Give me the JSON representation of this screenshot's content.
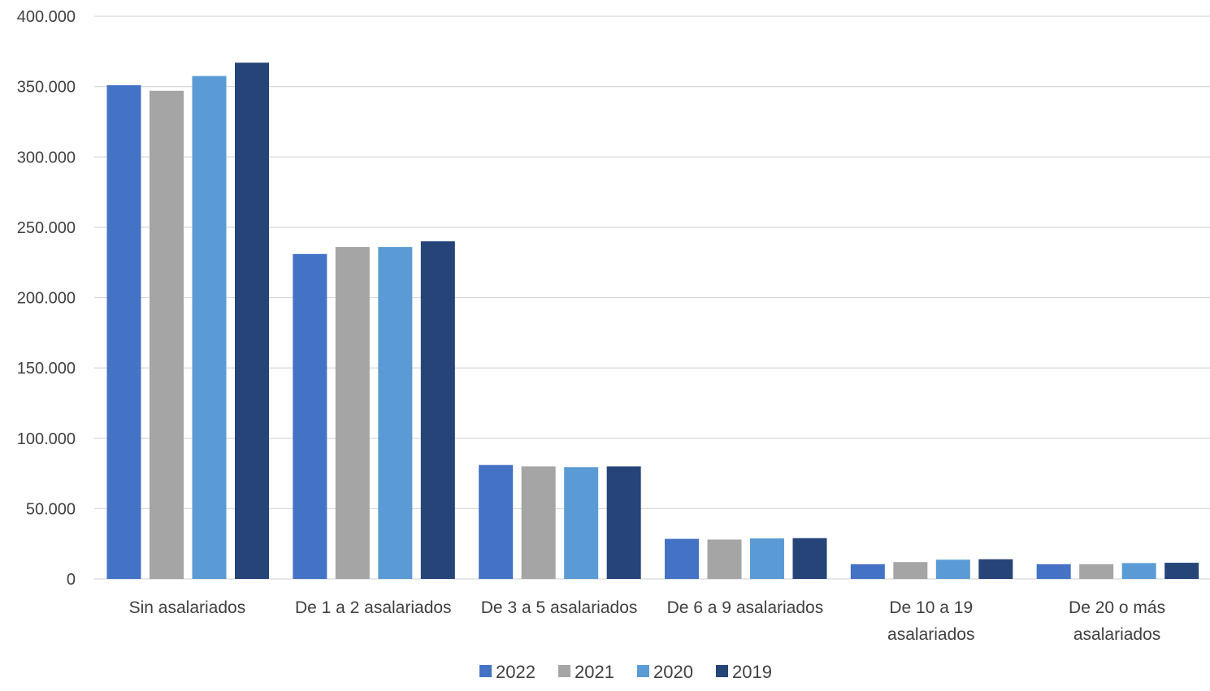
{
  "chart_data": {
    "type": "bar",
    "title": "",
    "xlabel": "",
    "ylabel": "",
    "ylim": [
      0,
      400000
    ],
    "yticks": [
      0,
      50000,
      100000,
      150000,
      200000,
      250000,
      300000,
      350000,
      400000
    ],
    "ytick_labels": [
      "0",
      "50.000",
      "100.000",
      "150.000",
      "200.000",
      "250.000",
      "300.000",
      "350.000",
      "400.000"
    ],
    "grid": true,
    "legend_position": "bottom",
    "categories": [
      "Sin asalariados",
      "De 1 a 2 asalariados",
      "De 3 a 5 asalariados",
      "De 6 a 9 asalariados",
      "De 10 a 19 asalariados",
      "De 20 o más asalariados"
    ],
    "category_label_lines": [
      [
        "Sin asalariados"
      ],
      [
        "De 1 a 2 asalariados"
      ],
      [
        "De 3 a 5 asalariados"
      ],
      [
        "De 6 a 9 asalariados"
      ],
      [
        "De 10 a 19",
        "asalariados"
      ],
      [
        "De 20 o más",
        "asalariados"
      ]
    ],
    "series": [
      {
        "name": "2022",
        "color": "#4472C4",
        "values": [
          351000,
          231000,
          81000,
          28500,
          10500,
          10500
        ]
      },
      {
        "name": "2021",
        "color": "#A5A5A5",
        "values": [
          347000,
          236000,
          80000,
          28000,
          12000,
          10500
        ]
      },
      {
        "name": "2020",
        "color": "#5B9BD5",
        "values": [
          357500,
          236000,
          79500,
          28800,
          13700,
          11300
        ]
      },
      {
        "name": "2019",
        "color": "#264478",
        "values": [
          367000,
          240000,
          80000,
          29000,
          14000,
          11500
        ]
      }
    ],
    "colors": {
      "grid": "#D9D9D9",
      "axis": "#D9D9D9",
      "text": "#404040"
    }
  }
}
